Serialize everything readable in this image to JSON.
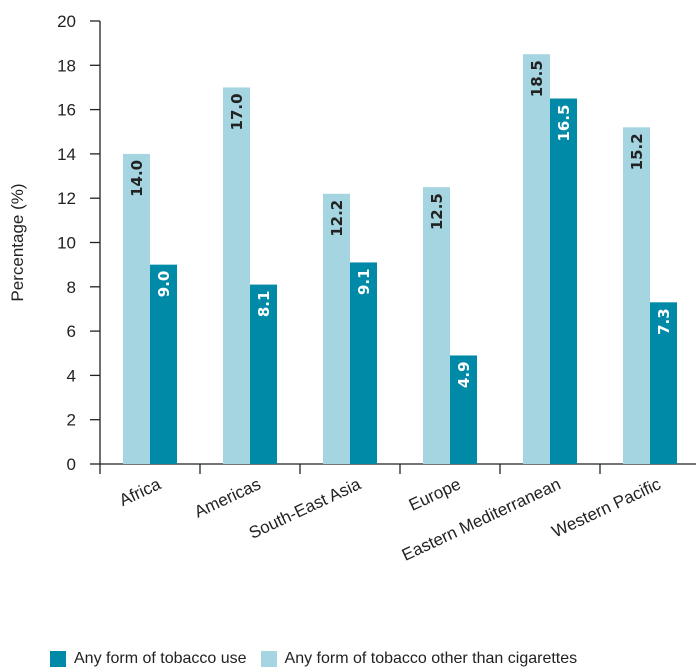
{
  "chart_data": {
    "type": "bar",
    "title": "",
    "xlabel": "",
    "ylabel": "Percentage (%)",
    "ylim": [
      0,
      20
    ],
    "yticks": [
      0,
      2,
      4,
      6,
      8,
      10,
      12,
      14,
      16,
      18,
      20
    ],
    "categories": [
      "Africa",
      "Americas",
      "South-East Asia",
      "Europe",
      "Eastern Mediterranean",
      "Western Pacific"
    ],
    "series": [
      {
        "name": "Any form of tobacco other than cigarettes",
        "color": "#a6d5e2",
        "values": [
          14.0,
          17.0,
          12.2,
          12.5,
          18.5,
          15.2
        ]
      },
      {
        "name": "Any form of tobacco use",
        "color": "#008aa8",
        "values": [
          9.0,
          8.1,
          9.1,
          4.9,
          16.5,
          7.3
        ]
      }
    ],
    "legend_order": [
      1,
      0
    ],
    "legend_position": "bottom",
    "grid": false,
    "data_labels": true
  }
}
